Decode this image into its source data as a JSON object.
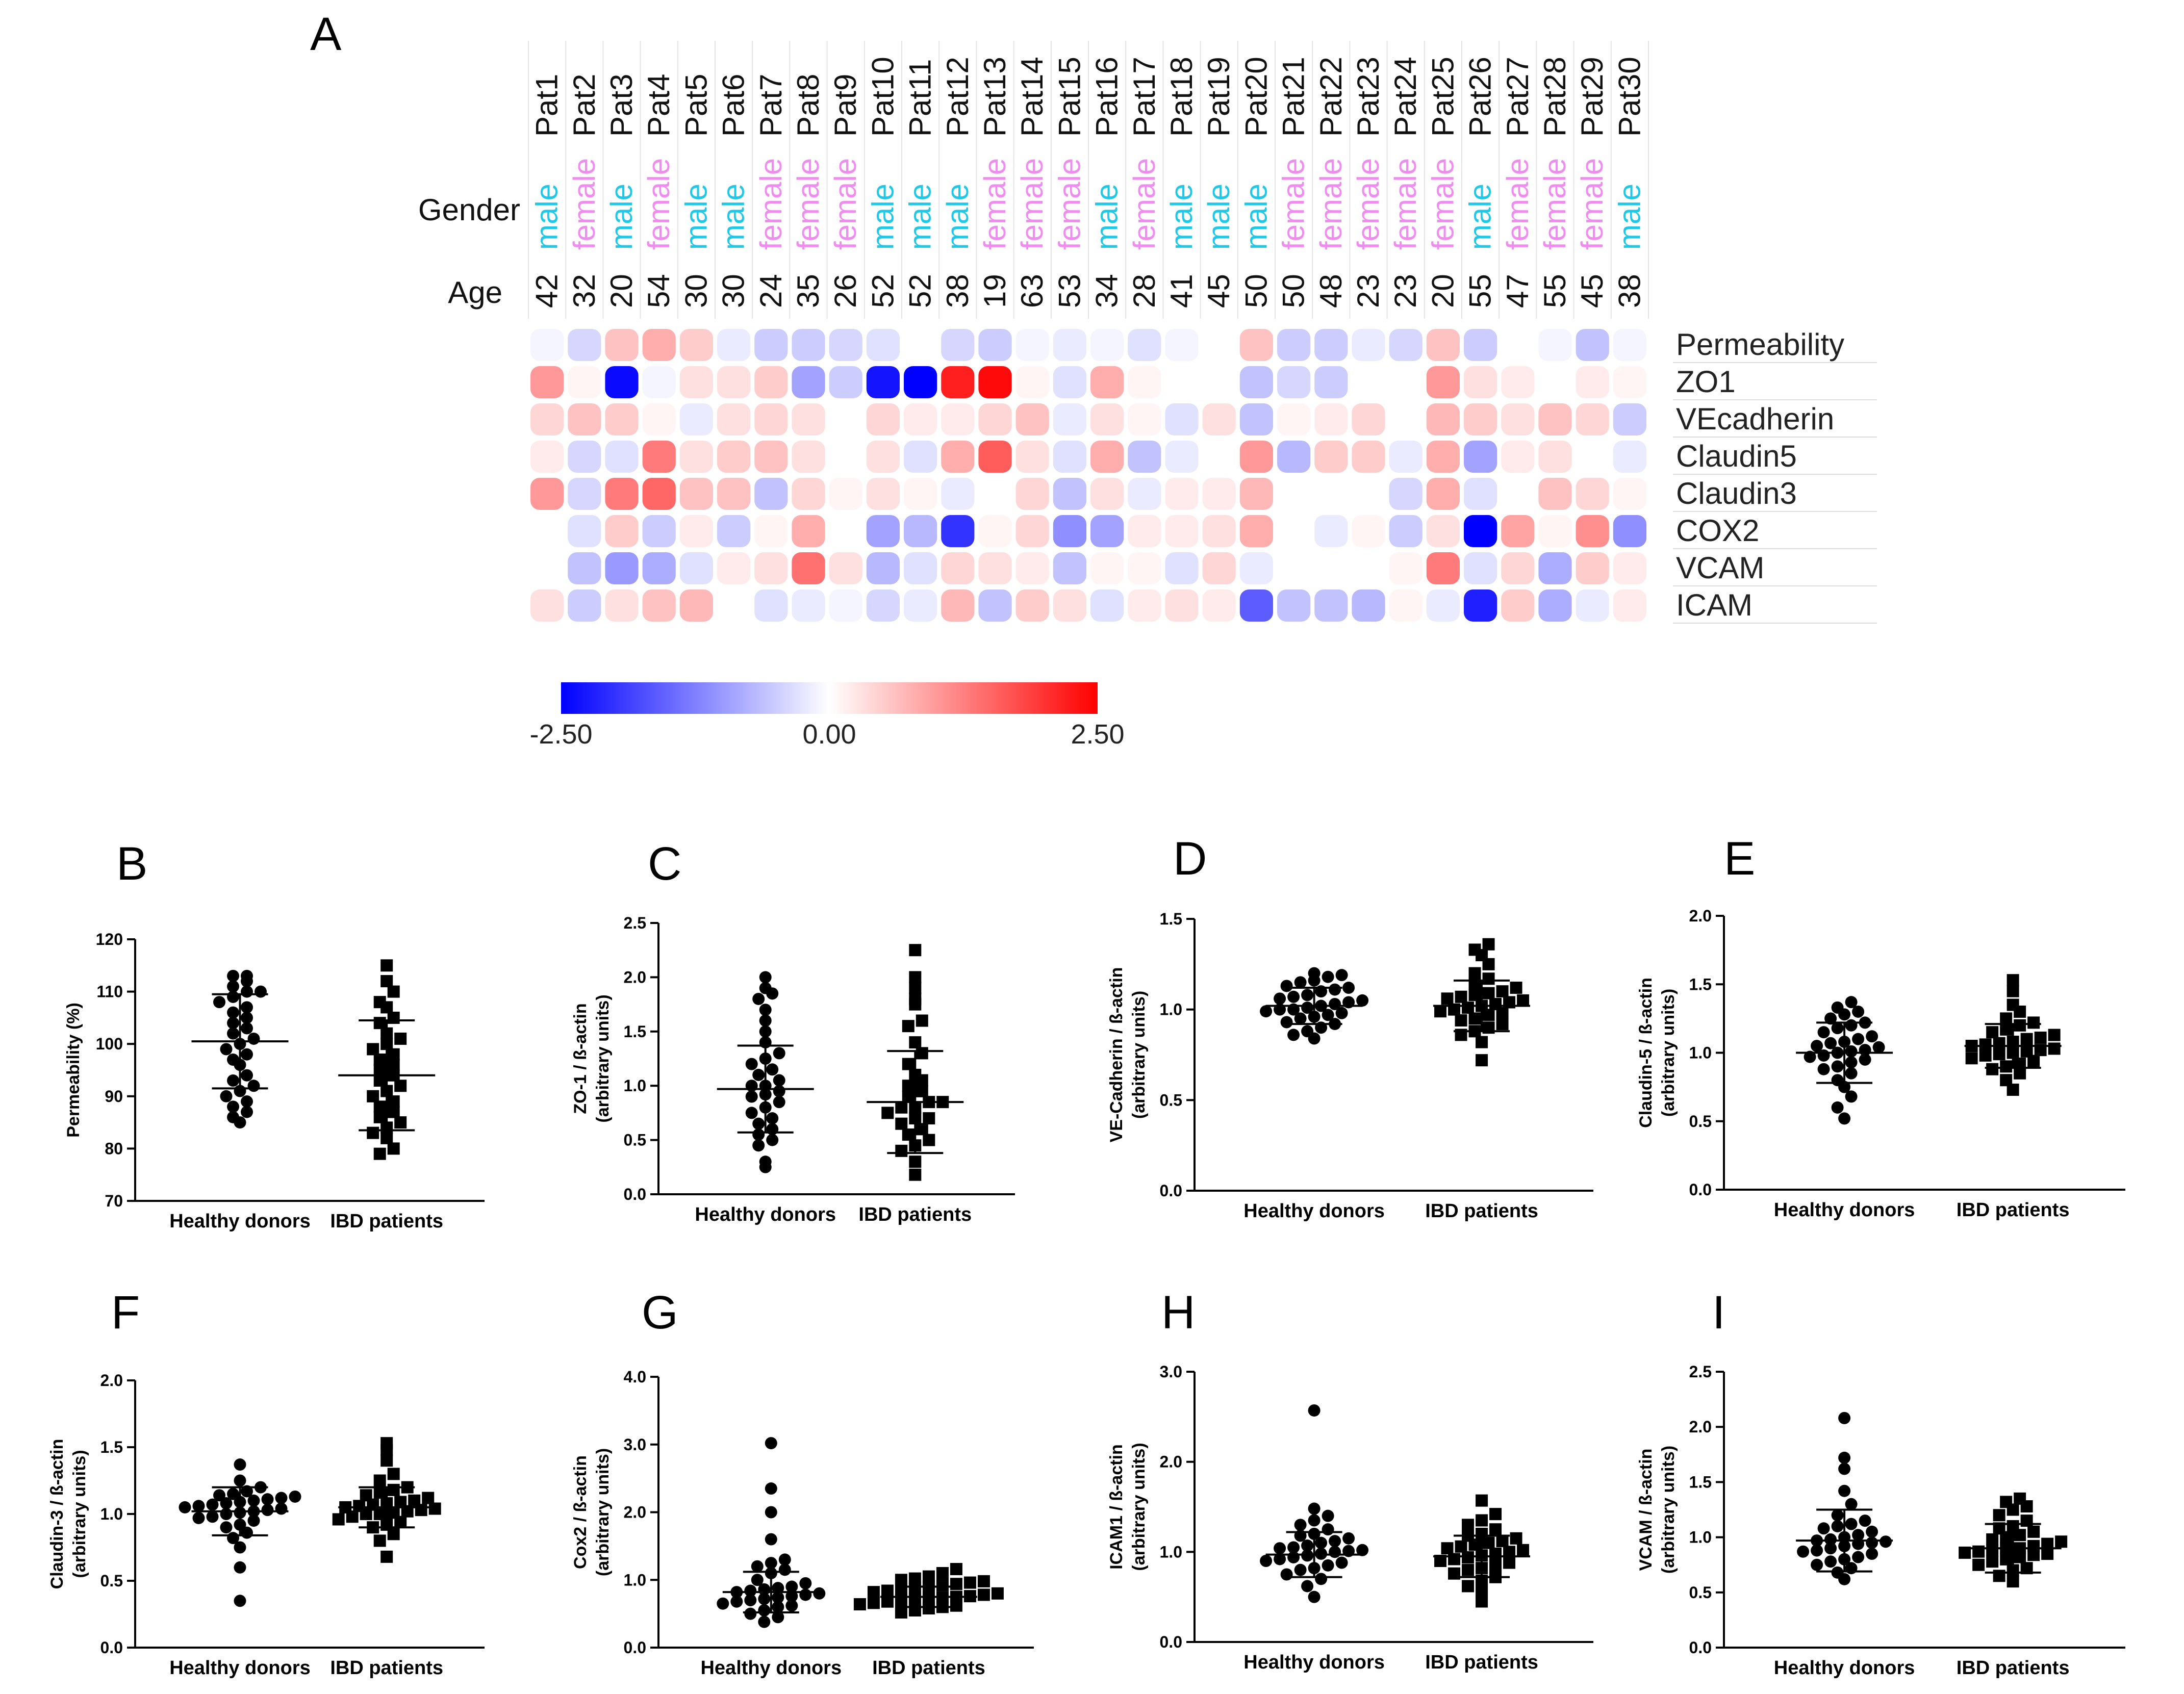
{
  "colors": {
    "male": "#1ec8e6",
    "female": "#f08cf0",
    "neg": "#0000ff",
    "mid": "#ffffff",
    "pos": "#ff0000"
  },
  "heatmap": {
    "panel_label": "A",
    "gender_label": "Gender",
    "age_label": "Age",
    "patients": [
      "Pat1",
      "Pat2",
      "Pat3",
      "Pat4",
      "Pat5",
      "Pat6",
      "Pat7",
      "Pat8",
      "Pat9",
      "Pat10",
      "Pat11",
      "Pat12",
      "Pat13",
      "Pat14",
      "Pat15",
      "Pat16",
      "Pat17",
      "Pat18",
      "Pat19",
      "Pat20",
      "Pat21",
      "Pat22",
      "Pat23",
      "Pat24",
      "Pat25",
      "Pat26",
      "Pat27",
      "Pat28",
      "Pat29",
      "Pat30"
    ],
    "genders": [
      "male",
      "female",
      "male",
      "female",
      "male",
      "male",
      "female",
      "female",
      "female",
      "male",
      "male",
      "male",
      "female",
      "female",
      "female",
      "male",
      "female",
      "male",
      "male",
      "male",
      "female",
      "female",
      "female",
      "female",
      "female",
      "male",
      "female",
      "female",
      "female",
      "male"
    ],
    "ages": [
      "42",
      "32",
      "20",
      "54",
      "30",
      "30",
      "24",
      "35",
      "26",
      "52",
      "52",
      "38",
      "19",
      "63",
      "53",
      "34",
      "28",
      "41",
      "45",
      "50",
      "50",
      "48",
      "23",
      "23",
      "20",
      "55",
      "47",
      "55",
      "45",
      "38"
    ],
    "rows": [
      "Permeability",
      "ZO1",
      "VEcadherin",
      "Claudin5",
      "Claudin3",
      "COX2",
      "VCAM",
      "ICAM"
    ],
    "values": [
      [
        -0.1,
        -0.4,
        0.6,
        0.8,
        0.5,
        -0.2,
        -0.5,
        -0.5,
        -0.4,
        -0.3,
        0.0,
        -0.4,
        -0.5,
        -0.1,
        -0.2,
        -0.1,
        -0.3,
        -0.1,
        0.0,
        0.6,
        -0.5,
        -0.5,
        -0.2,
        -0.4,
        0.6,
        -0.5,
        0.0,
        -0.1,
        -0.6,
        -0.1
      ],
      [
        1.0,
        0.1,
        -2.4,
        -0.1,
        0.3,
        0.3,
        0.5,
        -0.9,
        -0.5,
        -2.3,
        -2.5,
        2.2,
        2.4,
        0.1,
        -0.3,
        0.8,
        0.1,
        0.0,
        0.0,
        -0.6,
        -0.4,
        -0.5,
        0.0,
        0.0,
        1.0,
        0.3,
        0.2,
        0.0,
        0.2,
        0.1
      ],
      [
        0.4,
        0.6,
        0.5,
        0.1,
        -0.2,
        0.3,
        0.4,
        0.3,
        0.0,
        0.4,
        0.2,
        0.2,
        0.4,
        0.6,
        -0.2,
        0.3,
        0.1,
        -0.3,
        0.3,
        -0.6,
        0.1,
        0.2,
        0.4,
        0.0,
        0.7,
        0.5,
        0.3,
        0.6,
        0.4,
        -0.5
      ],
      [
        0.2,
        -0.4,
        -0.3,
        1.3,
        0.3,
        0.5,
        0.6,
        0.3,
        0.0,
        0.3,
        -0.3,
        0.8,
        1.6,
        0.3,
        -0.3,
        0.8,
        -0.6,
        -0.2,
        0.0,
        1.0,
        -0.7,
        0.5,
        0.5,
        -0.2,
        0.8,
        -0.9,
        0.2,
        0.3,
        0.0,
        -0.2
      ],
      [
        1.0,
        -0.4,
        1.3,
        1.5,
        0.6,
        0.6,
        -0.6,
        0.4,
        0.1,
        0.3,
        0.1,
        -0.2,
        0.0,
        0.4,
        -0.6,
        0.3,
        -0.2,
        0.2,
        0.2,
        0.7,
        0.0,
        0.0,
        0.0,
        -0.4,
        0.8,
        -0.3,
        0.0,
        0.6,
        0.4,
        0.1
      ],
      [
        0.0,
        -0.3,
        0.5,
        -0.5,
        0.2,
        -0.5,
        0.1,
        0.8,
        0.0,
        -0.9,
        -0.7,
        -2.0,
        0.1,
        0.4,
        -1.1,
        -0.9,
        0.2,
        0.2,
        0.3,
        0.8,
        0.0,
        -0.2,
        0.1,
        -0.5,
        0.3,
        -2.5,
        0.9,
        0.1,
        1.1,
        -1.1
      ],
      [
        0.0,
        -0.6,
        -1.0,
        -0.8,
        -0.3,
        0.2,
        0.3,
        1.4,
        0.3,
        -0.7,
        -0.3,
        0.4,
        0.3,
        0.2,
        -0.6,
        0.1,
        0.1,
        -0.3,
        0.4,
        -0.2,
        0.0,
        0.0,
        0.0,
        0.1,
        1.3,
        -0.3,
        0.4,
        -0.8,
        0.5,
        0.2
      ],
      [
        0.3,
        -0.5,
        0.3,
        0.6,
        0.7,
        0.0,
        -0.3,
        -0.2,
        -0.1,
        -0.4,
        -0.2,
        0.7,
        -0.6,
        0.5,
        0.3,
        -0.3,
        0.2,
        0.3,
        0.2,
        -1.6,
        -0.6,
        -0.6,
        -0.7,
        0.1,
        -0.2,
        -2.2,
        0.5,
        -0.8,
        -0.2,
        0.2
      ]
    ],
    "scale": {
      "min": -2.5,
      "max": 2.5,
      "labels": [
        "-2.50",
        "0.00",
        "2.50"
      ]
    }
  },
  "chart_data": [
    {
      "type": "scatter",
      "panel": "B",
      "ylabel_lines": [
        "Permeability (%)"
      ],
      "categories": [
        "Healthy donors",
        "IBD patients"
      ],
      "ylim": [
        70,
        120
      ],
      "yticks": [
        "70",
        "80",
        "90",
        "100",
        "110",
        "120"
      ],
      "series": [
        {
          "name": "Healthy donors",
          "marker": "circle",
          "mean": 100.5,
          "sd": 9.0,
          "values": [
            85,
            86,
            87,
            88,
            89,
            90,
            91,
            92,
            93,
            94,
            96,
            97,
            98,
            99,
            100,
            101,
            102,
            103,
            104,
            105,
            106,
            107,
            108,
            109,
            110,
            110,
            111,
            112,
            113,
            113
          ]
        },
        {
          "name": "IBD patients",
          "marker": "square",
          "mean": 94.0,
          "sd": 10.5,
          "values": [
            79,
            80,
            82,
            83,
            84,
            85,
            86,
            87,
            88,
            89,
            90,
            91,
            92,
            93,
            94,
            95,
            96,
            97,
            98,
            99,
            100,
            101,
            102,
            104,
            105,
            107,
            108,
            110,
            112,
            115
          ]
        }
      ]
    },
    {
      "type": "scatter",
      "panel": "C",
      "ylabel_lines": [
        "ZO-1 / ß-actin",
        "(arbitrary units)"
      ],
      "categories": [
        "Healthy donors",
        "IBD patients"
      ],
      "ylim": [
        0,
        2.5
      ],
      "yticks": [
        "0.0",
        "0.5",
        "1.0",
        "1.5",
        "2.0",
        "2.5"
      ],
      "series": [
        {
          "name": "Healthy donors",
          "marker": "circle",
          "mean": 0.97,
          "sd": 0.4,
          "values": [
            0.25,
            0.3,
            0.45,
            0.5,
            0.55,
            0.6,
            0.65,
            0.7,
            0.75,
            0.8,
            0.85,
            0.9,
            0.92,
            0.95,
            1.0,
            1.0,
            1.05,
            1.1,
            1.15,
            1.2,
            1.25,
            1.3,
            1.4,
            1.5,
            1.6,
            1.7,
            1.8,
            1.85,
            1.9,
            2.0
          ]
        },
        {
          "name": "IBD patients",
          "marker": "square",
          "mean": 0.85,
          "sd": 0.47,
          "values": [
            0.18,
            0.3,
            0.4,
            0.45,
            0.5,
            0.55,
            0.6,
            0.65,
            0.7,
            0.7,
            0.75,
            0.8,
            0.8,
            0.85,
            0.85,
            0.9,
            0.95,
            1.0,
            1.05,
            1.1,
            1.2,
            1.3,
            1.4,
            1.55,
            1.6,
            1.75,
            1.8,
            1.9,
            2.0,
            2.25
          ]
        }
      ]
    },
    {
      "type": "scatter",
      "panel": "D",
      "ylabel_lines": [
        "VE-Cadherin / ß-actin",
        "(arbitrary units)"
      ],
      "categories": [
        "Healthy donors",
        "IBD patients"
      ],
      "ylim": [
        0,
        1.5
      ],
      "yticks": [
        "0.0",
        "0.5",
        "1.0",
        "1.5"
      ],
      "series": [
        {
          "name": "Healthy donors",
          "marker": "circle",
          "mean": 1.02,
          "sd": 0.1,
          "values": [
            0.84,
            0.86,
            0.88,
            0.9,
            0.92,
            0.93,
            0.95,
            0.96,
            0.97,
            0.98,
            0.99,
            1.0,
            1.0,
            1.01,
            1.02,
            1.03,
            1.04,
            1.05,
            1.06,
            1.07,
            1.08,
            1.1,
            1.11,
            1.12,
            1.13,
            1.15,
            1.16,
            1.18,
            1.19,
            1.2
          ]
        },
        {
          "name": "IBD patients",
          "marker": "square",
          "mean": 1.02,
          "sd": 0.14,
          "values": [
            0.72,
            0.82,
            0.86,
            0.88,
            0.9,
            0.92,
            0.94,
            0.95,
            0.97,
            0.98,
            0.99,
            1.0,
            1.01,
            1.02,
            1.03,
            1.04,
            1.05,
            1.06,
            1.07,
            1.08,
            1.09,
            1.1,
            1.12,
            1.14,
            1.17,
            1.2,
            1.25,
            1.3,
            1.33,
            1.36
          ]
        }
      ]
    },
    {
      "type": "scatter",
      "panel": "E",
      "ylabel_lines": [
        "Claudin-5 / ß-actin",
        "(arbitrary units)"
      ],
      "categories": [
        "Healthy donors",
        "IBD patients"
      ],
      "ylim": [
        0,
        2.0
      ],
      "yticks": [
        "0.0",
        "0.5",
        "1.0",
        "1.5",
        "2.0"
      ],
      "series": [
        {
          "name": "Healthy donors",
          "marker": "circle",
          "mean": 1.0,
          "sd": 0.22,
          "values": [
            0.52,
            0.6,
            0.68,
            0.75,
            0.8,
            0.85,
            0.88,
            0.9,
            0.93,
            0.95,
            0.97,
            0.98,
            1.0,
            1.01,
            1.02,
            1.04,
            1.05,
            1.07,
            1.08,
            1.1,
            1.12,
            1.15,
            1.18,
            1.2,
            1.22,
            1.25,
            1.28,
            1.3,
            1.33,
            1.37
          ]
        },
        {
          "name": "IBD patients",
          "marker": "square",
          "mean": 1.05,
          "sd": 0.16,
          "values": [
            0.73,
            0.8,
            0.85,
            0.88,
            0.9,
            0.92,
            0.94,
            0.96,
            0.98,
            0.99,
            1.0,
            1.01,
            1.02,
            1.03,
            1.05,
            1.06,
            1.07,
            1.08,
            1.1,
            1.11,
            1.13,
            1.15,
            1.17,
            1.2,
            1.22,
            1.25,
            1.3,
            1.35,
            1.45,
            1.53
          ]
        }
      ]
    },
    {
      "type": "scatter",
      "panel": "F",
      "ylabel_lines": [
        "Claudin-3 / ß-actin",
        "(arbitrary units)"
      ],
      "categories": [
        "Healthy donors",
        "IBD patients"
      ],
      "ylim": [
        0,
        2.0
      ],
      "yticks": [
        "0.0",
        "0.5",
        "1.0",
        "1.5",
        "2.0"
      ],
      "series": [
        {
          "name": "Healthy donors",
          "marker": "circle",
          "mean": 1.02,
          "sd": 0.18,
          "values": [
            0.35,
            0.6,
            0.75,
            0.82,
            0.86,
            0.9,
            0.92,
            0.95,
            0.97,
            0.98,
            1.0,
            1.01,
            1.02,
            1.03,
            1.04,
            1.05,
            1.06,
            1.07,
            1.08,
            1.09,
            1.1,
            1.11,
            1.12,
            1.13,
            1.14,
            1.15,
            1.17,
            1.2,
            1.25,
            1.37
          ]
        },
        {
          "name": "IBD patients",
          "marker": "square",
          "mean": 1.05,
          "sd": 0.15,
          "values": [
            0.68,
            0.8,
            0.85,
            0.9,
            0.92,
            0.94,
            0.96,
            0.98,
            1.0,
            1.0,
            1.01,
            1.02,
            1.03,
            1.04,
            1.05,
            1.06,
            1.07,
            1.08,
            1.09,
            1.1,
            1.12,
            1.14,
            1.16,
            1.18,
            1.2,
            1.25,
            1.3,
            1.4,
            1.48,
            1.53
          ]
        }
      ]
    },
    {
      "type": "scatter",
      "panel": "G",
      "ylabel_lines": [
        "Cox2 / ß-actin",
        "(arbitrary units)"
      ],
      "categories": [
        "Healthy donors",
        "IBD patients"
      ],
      "ylim": [
        0,
        4.0
      ],
      "yticks": [
        "0.0",
        "1.0",
        "2.0",
        "3.0",
        "4.0"
      ],
      "series": [
        {
          "name": "Healthy donors",
          "marker": "circle",
          "mean": 0.82,
          "sd": 0.3,
          "values": [
            0.38,
            0.45,
            0.5,
            0.55,
            0.6,
            0.62,
            0.65,
            0.68,
            0.7,
            0.72,
            0.74,
            0.76,
            0.78,
            0.8,
            0.82,
            0.84,
            0.86,
            0.88,
            0.9,
            0.95,
            1.0,
            1.1,
            1.15,
            1.2,
            1.25,
            1.3,
            1.6,
            2.0,
            2.35,
            3.02
          ]
        },
        {
          "name": "IBD patients",
          "marker": "square",
          "mean": 0.75,
          "sd": 0.15,
          "values": [
            0.52,
            0.55,
            0.58,
            0.6,
            0.62,
            0.64,
            0.66,
            0.68,
            0.7,
            0.71,
            0.72,
            0.74,
            0.75,
            0.76,
            0.78,
            0.8,
            0.82,
            0.84,
            0.86,
            0.88,
            0.9,
            0.92,
            0.94,
            0.96,
            0.98,
            1.0,
            1.02,
            1.05,
            1.1,
            1.16
          ]
        }
      ]
    },
    {
      "type": "scatter",
      "panel": "H",
      "ylabel_lines": [
        "ICAM1 / ß-actin",
        "(arbitrary units)"
      ],
      "categories": [
        "Healthy donors",
        "IBD patients"
      ],
      "ylim": [
        0,
        3.0
      ],
      "yticks": [
        "0.0",
        "1.0",
        "2.0",
        "3.0"
      ],
      "series": [
        {
          "name": "Healthy donors",
          "marker": "circle",
          "mean": 0.97,
          "sd": 0.25,
          "values": [
            0.5,
            0.62,
            0.7,
            0.75,
            0.8,
            0.82,
            0.85,
            0.88,
            0.9,
            0.92,
            0.94,
            0.96,
            0.98,
            1.0,
            1.01,
            1.02,
            1.04,
            1.05,
            1.07,
            1.1,
            1.12,
            1.15,
            1.18,
            1.2,
            1.25,
            1.3,
            1.35,
            1.4,
            1.48,
            2.57
          ]
        },
        {
          "name": "IBD patients",
          "marker": "square",
          "mean": 0.95,
          "sd": 0.23,
          "values": [
            0.45,
            0.55,
            0.62,
            0.68,
            0.72,
            0.76,
            0.8,
            0.82,
            0.85,
            0.88,
            0.9,
            0.92,
            0.94,
            0.96,
            0.98,
            1.0,
            1.02,
            1.04,
            1.06,
            1.08,
            1.1,
            1.12,
            1.15,
            1.18,
            1.2,
            1.25,
            1.3,
            1.35,
            1.42,
            1.57
          ]
        }
      ]
    },
    {
      "type": "scatter",
      "panel": "I",
      "ylabel_lines": [
        "VCAM / ß-actin",
        "(arbitrary units)"
      ],
      "categories": [
        "Healthy donors",
        "IBD patients"
      ],
      "ylim": [
        0,
        2.5
      ],
      "yticks": [
        "0.0",
        "0.5",
        "1.0",
        "1.5",
        "2.0",
        "2.5"
      ],
      "series": [
        {
          "name": "Healthy donors",
          "marker": "circle",
          "mean": 0.97,
          "sd": 0.28,
          "values": [
            0.62,
            0.68,
            0.72,
            0.75,
            0.78,
            0.8,
            0.82,
            0.85,
            0.87,
            0.88,
            0.9,
            0.92,
            0.94,
            0.95,
            0.96,
            0.97,
            0.98,
            1.0,
            1.02,
            1.05,
            1.08,
            1.1,
            1.12,
            1.15,
            1.2,
            1.3,
            1.42,
            1.62,
            1.72,
            2.08
          ]
        },
        {
          "name": "IBD patients",
          "marker": "square",
          "mean": 0.9,
          "sd": 0.22,
          "values": [
            0.6,
            0.65,
            0.7,
            0.72,
            0.75,
            0.78,
            0.8,
            0.82,
            0.84,
            0.85,
            0.86,
            0.87,
            0.88,
            0.9,
            0.9,
            0.92,
            0.94,
            0.96,
            0.98,
            1.0,
            1.02,
            1.05,
            1.08,
            1.1,
            1.15,
            1.2,
            1.25,
            1.28,
            1.32,
            1.35
          ]
        }
      ]
    }
  ]
}
